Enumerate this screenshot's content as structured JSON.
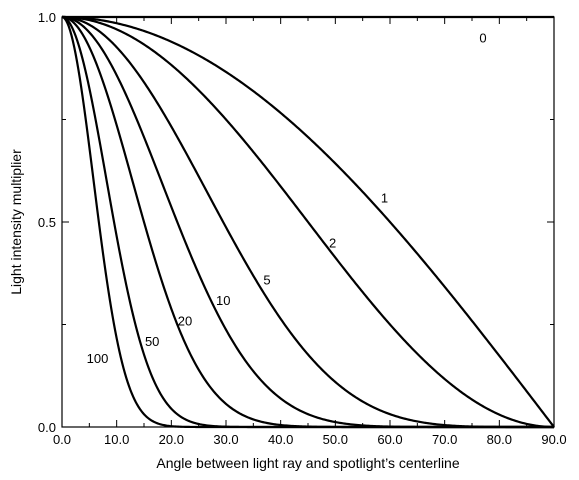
{
  "chart_data": {
    "type": "line",
    "title": "",
    "xlabel": "Angle between light ray and spotlight’s centerline",
    "ylabel": "Light intensity multiplier",
    "xlim": [
      0,
      90
    ],
    "ylim": [
      0,
      1
    ],
    "x_ticks": [
      0,
      10,
      20,
      30,
      40,
      50,
      60,
      70,
      80,
      90
    ],
    "x_tick_labels": [
      "0.0",
      "10.0",
      "20.0",
      "30.0",
      "40.0",
      "50.0",
      "60.0",
      "70.0",
      "80.0",
      "90.0"
    ],
    "y_ticks": [
      0,
      0.5,
      1
    ],
    "y_tick_labels": [
      "0.0",
      "0.5",
      "1.0"
    ],
    "grid": false,
    "legend": "none",
    "line_color": "#000000",
    "function": "y = cos(x)^n",
    "series": [
      {
        "label": "0",
        "n": 0,
        "label_at": [
          77,
          0.95
        ]
      },
      {
        "label": "1",
        "n": 1,
        "label_at": [
          59,
          0.56
        ]
      },
      {
        "label": "2",
        "n": 2,
        "label_at": [
          49.5,
          0.45
        ]
      },
      {
        "label": "5",
        "n": 5,
        "label_at": [
          37.5,
          0.36
        ]
      },
      {
        "label": "10",
        "n": 10,
        "label_at": [
          29.5,
          0.31
        ]
      },
      {
        "label": "20",
        "n": 20,
        "label_at": [
          22.5,
          0.26
        ]
      },
      {
        "label": "50",
        "n": 50,
        "label_at": [
          16.5,
          0.21
        ]
      },
      {
        "label": "100",
        "n": 100,
        "label_at": [
          6.5,
          0.168
        ]
      }
    ]
  }
}
